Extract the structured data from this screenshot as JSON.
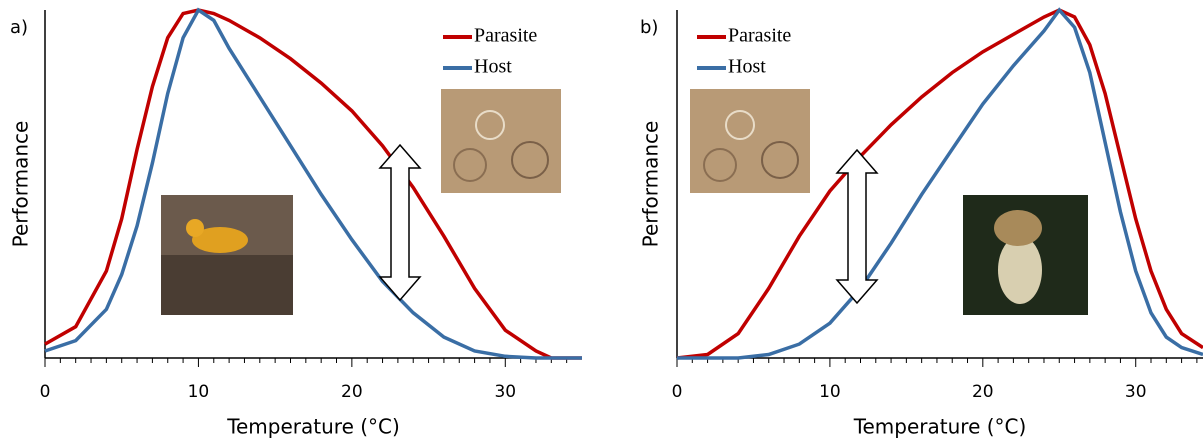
{
  "chart_data": [
    {
      "type": "line",
      "panel_label": "a)",
      "x_label": "Temperature (°C)",
      "y_label": "Performance",
      "x": [
        0,
        2,
        4,
        5,
        6,
        7,
        8,
        9,
        10,
        11,
        12,
        14,
        16,
        18,
        20,
        22,
        24,
        26,
        28,
        30,
        32,
        33,
        35
      ],
      "series": [
        {
          "name": "Parasite",
          "color": "#c00000",
          "values": [
            0.04,
            0.09,
            0.25,
            0.4,
            0.6,
            0.78,
            0.92,
            0.99,
            1.0,
            0.99,
            0.97,
            0.92,
            0.86,
            0.79,
            0.71,
            0.61,
            0.49,
            0.35,
            0.2,
            0.08,
            0.02,
            0.0,
            0.0
          ]
        },
        {
          "name": "Host",
          "color": "#3a6ea5",
          "values": [
            0.02,
            0.05,
            0.14,
            0.24,
            0.38,
            0.56,
            0.76,
            0.92,
            1.0,
            0.97,
            0.89,
            0.75,
            0.61,
            0.47,
            0.34,
            0.22,
            0.13,
            0.06,
            0.02,
            0.005,
            0.0,
            0.0,
            0.0
          ]
        }
      ],
      "xlim": [
        0,
        35
      ],
      "ylim": [
        0,
        1
      ],
      "xticks": [
        0,
        10,
        20,
        30
      ],
      "minor_xticks": [
        1,
        2,
        3,
        4,
        5,
        6,
        7,
        8,
        9,
        11,
        12,
        13,
        14,
        15,
        16,
        17,
        18,
        19,
        21,
        22,
        23,
        24,
        25,
        26,
        27,
        28,
        29,
        31,
        32,
        33,
        34
      ]
    },
    {
      "type": "line",
      "panel_label": "b)",
      "x_label": "Temperature (°C)",
      "y_label": "Performance",
      "x": [
        0,
        2,
        4,
        6,
        8,
        10,
        12,
        14,
        16,
        18,
        20,
        22,
        24,
        25,
        26,
        27,
        28,
        29,
        30,
        31,
        32,
        33,
        34.4
      ],
      "series": [
        {
          "name": "Parasite",
          "color": "#c00000",
          "values": [
            0.0,
            0.01,
            0.07,
            0.2,
            0.35,
            0.48,
            0.58,
            0.67,
            0.75,
            0.82,
            0.88,
            0.93,
            0.98,
            1.0,
            0.98,
            0.9,
            0.76,
            0.58,
            0.4,
            0.25,
            0.14,
            0.07,
            0.03
          ]
        },
        {
          "name": "Host",
          "color": "#3a6ea5",
          "values": [
            0.0,
            0.0,
            0.0,
            0.01,
            0.04,
            0.1,
            0.2,
            0.33,
            0.47,
            0.6,
            0.73,
            0.84,
            0.94,
            1.0,
            0.95,
            0.82,
            0.62,
            0.42,
            0.25,
            0.13,
            0.06,
            0.03,
            0.01
          ]
        }
      ],
      "xlim": [
        0,
        34.4
      ],
      "ylim": [
        0,
        1
      ],
      "xticks": [
        0,
        10,
        20,
        30
      ],
      "minor_xticks": [
        1,
        2,
        3,
        4,
        5,
        6,
        7,
        8,
        9,
        11,
        12,
        13,
        14,
        15,
        16,
        17,
        18,
        19,
        21,
        22,
        23,
        24,
        25,
        26,
        27,
        28,
        29,
        31,
        32,
        33,
        34
      ]
    }
  ]
}
